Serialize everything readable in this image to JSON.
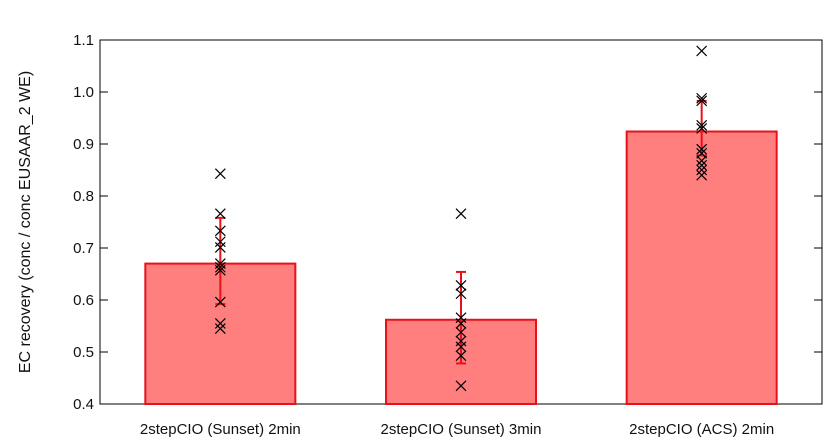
{
  "chart_data": {
    "type": "bar",
    "title": "",
    "xlabel": "",
    "ylabel": "EC recovery (conc / conc EUSAAR_2 WE)",
    "ylim": [
      0.4,
      1.1
    ],
    "yticks": [
      "0.4",
      "0.5",
      "0.6",
      "0.7",
      "0.8",
      "0.9",
      "1.0",
      "1.1"
    ],
    "grid": false,
    "categories": [
      "2stepCIO (Sunset) 2min",
      "2stepCIO (Sunset) 3min",
      "2stepCIO (ACS) 2min"
    ],
    "values": [
      0.67,
      0.562,
      0.924
    ],
    "error_bars": [
      {
        "low": 0.592,
        "high": 0.758
      },
      {
        "low": 0.478,
        "high": 0.654
      },
      {
        "low": 0.878,
        "high": 0.983
      }
    ],
    "points": [
      [
        0.843,
        0.766,
        0.733,
        0.712,
        0.701,
        0.67,
        0.663,
        0.657,
        0.596,
        0.555,
        0.545
      ],
      [
        0.766,
        0.628,
        0.612,
        0.566,
        0.555,
        0.538,
        0.521,
        0.51,
        0.493,
        0.435
      ],
      [
        1.079,
        0.988,
        0.983,
        0.936,
        0.93,
        0.89,
        0.882,
        0.868,
        0.859,
        0.85,
        0.84
      ]
    ],
    "colors": {
      "bar_fill": "#ff7f7f",
      "bar_edge": "#e8101a",
      "error_bar": "#e8101a",
      "points": "#000000",
      "axis": "#000000"
    }
  }
}
